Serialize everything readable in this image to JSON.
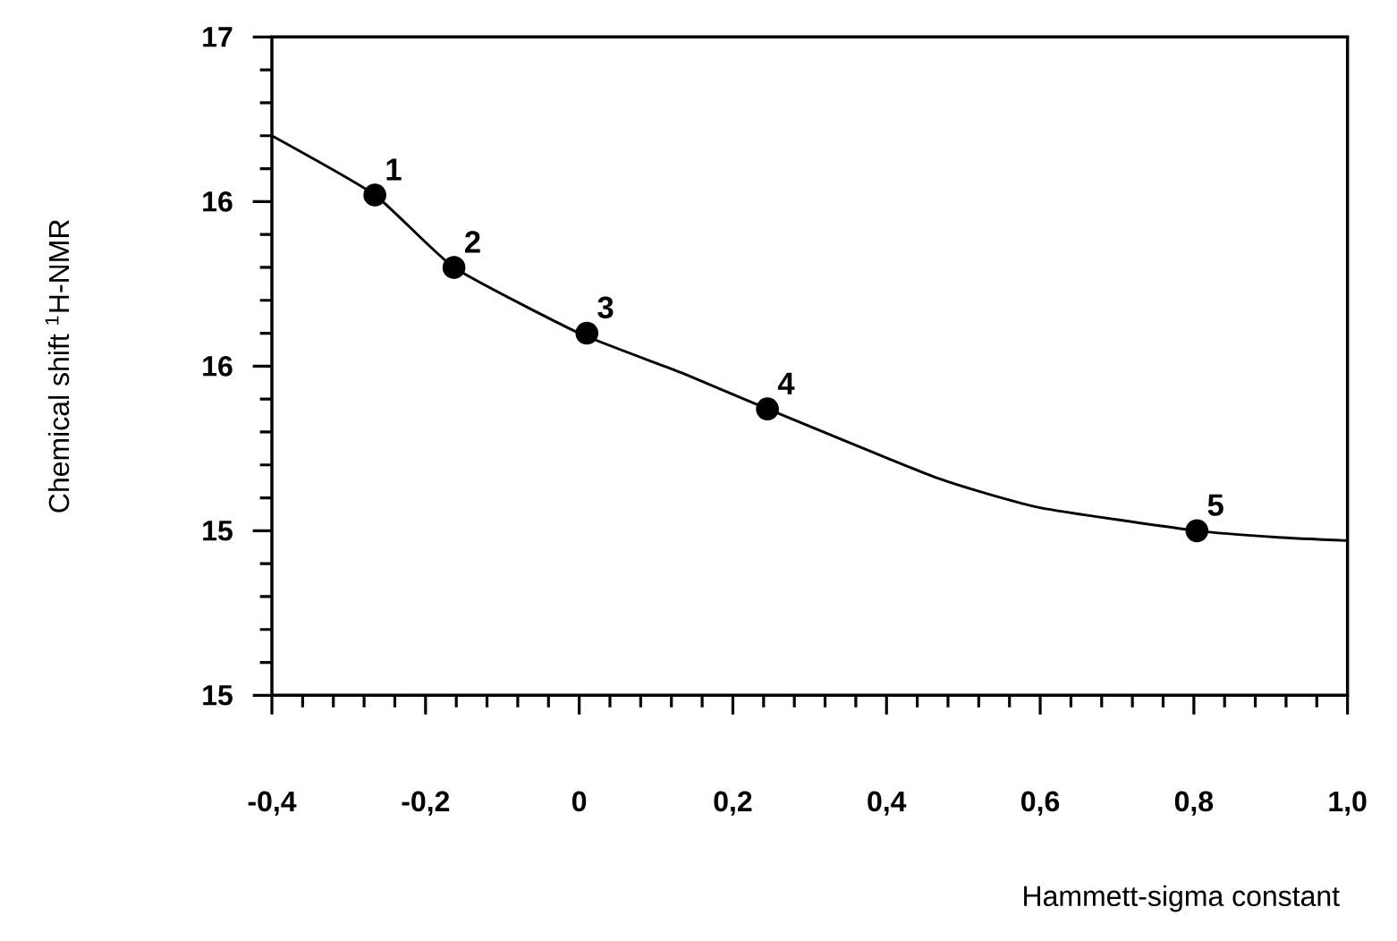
{
  "chart_data": {
    "type": "scatter",
    "xlabel": "Hammett-sigma constant",
    "ylabel": "Chemical shift $^{1}$H-NMR",
    "series": [
      {
        "type": "line",
        "color": "#000000",
        "marker": "none",
        "x": [
          -0.4,
          -0.266,
          -0.163,
          0.0,
          0.133,
          0.245,
          0.466,
          0.6,
          0.804,
          0.91,
          1.0
        ],
        "values": [
          16.7,
          16.52,
          16.3,
          16.1,
          15.98,
          15.87,
          15.66,
          15.57,
          15.5,
          15.48,
          15.47
        ]
      },
      {
        "color": "#000000",
        "marker": "circle",
        "x": [
          -0.266,
          -0.163,
          0.01,
          0.245,
          0.804
        ],
        "values": [
          16.52,
          16.3,
          16.1,
          15.87,
          15.5
        ]
      }
    ],
    "annotations": [
      {
        "text": "1",
        "x": -0.266,
        "y": 16.52
      },
      {
        "text": "2",
        "x": -0.163,
        "y": 16.3
      },
      {
        "text": "3",
        "x": 0.01,
        "y": 16.1
      },
      {
        "text": "4",
        "x": 0.245,
        "y": 15.87
      },
      {
        "text": "5",
        "x": 0.804,
        "y": 15.5
      }
    ],
    "xlim": [
      -0.4,
      1.0
    ],
    "ylim": [
      15,
      17
    ],
    "xticks": [
      {
        "value": -0.4,
        "label": "-0,4"
      },
      {
        "value": -0.2,
        "label": "-0,2"
      },
      0,
      {
        "value": 0.2,
        "label": "0,2"
      },
      {
        "value": 0.4,
        "label": "0,4"
      },
      {
        "value": 0.6,
        "label": "0,6"
      },
      {
        "value": 0.8,
        "label": "0,8"
      },
      {
        "value": 1.0,
        "label": "1,0"
      }
    ],
    "yticks": [
      15,
      {
        "value": 15.5,
        "label": "15"
      },
      16,
      {
        "value": 16.5,
        "label": "16"
      },
      17
    ]
  }
}
